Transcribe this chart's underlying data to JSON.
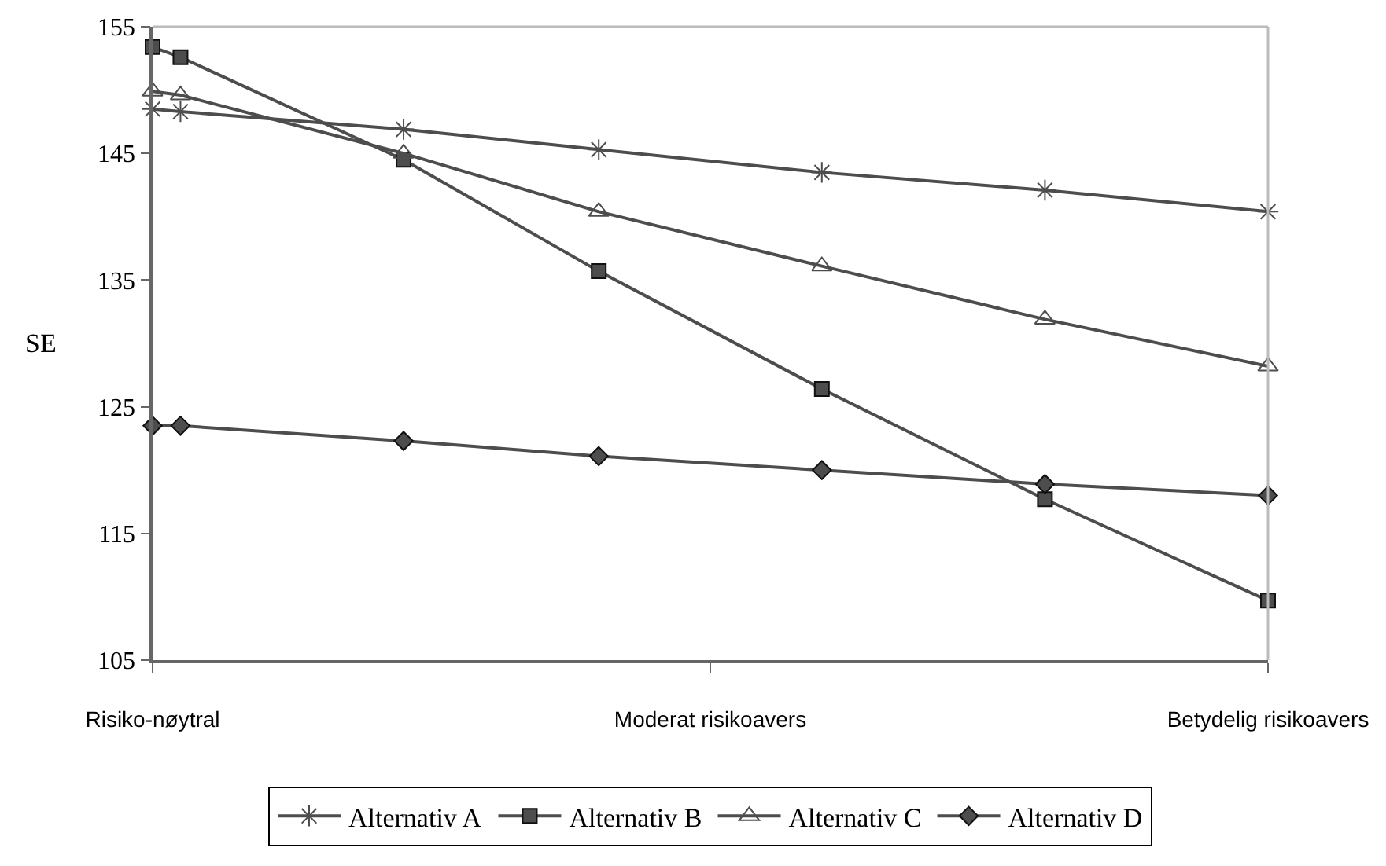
{
  "chart_data": {
    "type": "line",
    "ylabel": "SE",
    "categories": [
      "Risiko-nøytral",
      null,
      null,
      null,
      null,
      null,
      null,
      null,
      null,
      null,
      null,
      null,
      null,
      null,
      null,
      null,
      null,
      null,
      null,
      null,
      "Moderat risikoavers",
      null,
      null,
      null,
      null,
      null,
      null,
      null,
      null,
      null,
      null,
      null,
      null,
      null,
      null,
      null,
      null,
      null,
      null,
      null,
      "Betydelig risikoavers"
    ],
    "ylim": [
      105,
      155
    ],
    "yticks": [
      105,
      115,
      125,
      135,
      145,
      155
    ],
    "grid": false,
    "legend": "bottom",
    "series": [
      {
        "name": "Alternativ A",
        "color": "#4d4d4d",
        "marker": "cross",
        "values": [
          148.5,
          148.3,
          null,
          null,
          null,
          null,
          null,
          null,
          null,
          146.9,
          null,
          null,
          null,
          null,
          null,
          null,
          145.3,
          null,
          null,
          null,
          null,
          null,
          null,
          null,
          143.5,
          null,
          null,
          null,
          null,
          null,
          null,
          null,
          142.1,
          null,
          null,
          null,
          null,
          null,
          null,
          null,
          140.4
        ]
      },
      {
        "name": "Alternativ B",
        "color": "#4d4d4d",
        "marker": "square",
        "values": [
          153.4,
          152.6,
          null,
          null,
          null,
          null,
          null,
          null,
          null,
          144.5,
          null,
          null,
          null,
          null,
          null,
          null,
          135.7,
          null,
          null,
          null,
          null,
          null,
          null,
          null,
          126.4,
          null,
          null,
          null,
          null,
          null,
          null,
          null,
          117.7,
          null,
          null,
          null,
          null,
          null,
          null,
          null,
          109.7
        ]
      },
      {
        "name": "Alternativ C",
        "color": "#4d4d4d",
        "marker": "triangle",
        "values": [
          149.9,
          149.6,
          null,
          null,
          null,
          null,
          null,
          null,
          null,
          145.0,
          null,
          null,
          null,
          null,
          null,
          null,
          140.4,
          null,
          null,
          null,
          null,
          null,
          null,
          null,
          136.1,
          null,
          null,
          null,
          null,
          null,
          null,
          null,
          131.9,
          null,
          null,
          null,
          null,
          null,
          null,
          null,
          128.2
        ]
      },
      {
        "name": "Alternativ D",
        "color": "#4d4d4d",
        "marker": "diamond",
        "values": [
          123.5,
          123.5,
          null,
          null,
          null,
          null,
          null,
          null,
          null,
          122.3,
          null,
          null,
          null,
          null,
          null,
          null,
          121.1,
          null,
          null,
          null,
          null,
          null,
          null,
          null,
          120.0,
          null,
          null,
          null,
          null,
          null,
          null,
          null,
          118.9,
          null,
          null,
          null,
          null,
          null,
          null,
          null,
          118.0
        ]
      }
    ]
  }
}
